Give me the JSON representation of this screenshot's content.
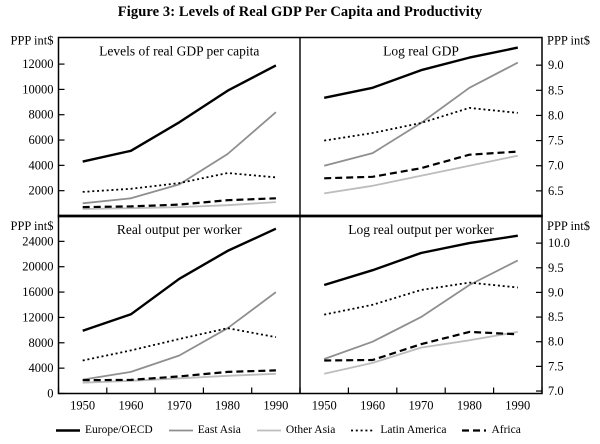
{
  "figure_title": "Figure 3: Levels of Real GDP Per Capita and Productivity",
  "axis_unit_label": "PPP int$",
  "years": [
    "1950",
    "1960",
    "1970",
    "1980",
    "1990"
  ],
  "styles": {
    "europe_oecd": {
      "color": "#000000",
      "width": 2.4,
      "dash": ""
    },
    "east_asia": {
      "color": "#8f8f8f",
      "width": 1.8,
      "dash": ""
    },
    "other_asia": {
      "color": "#bdbdbd",
      "width": 1.8,
      "dash": ""
    },
    "latin_america": {
      "color": "#000000",
      "width": 1.8,
      "dash": "2 2.8"
    },
    "africa": {
      "color": "#000000",
      "width": 2.2,
      "dash": "7 4"
    }
  },
  "legend": {
    "items": [
      {
        "label": "Europe/OECD",
        "style": "europe_oecd"
      },
      {
        "label": "East Asia",
        "style": "east_asia"
      },
      {
        "label": "Other Asia",
        "style": "other_asia"
      },
      {
        "label": "Latin America",
        "style": "latin_america"
      },
      {
        "label": "Africa",
        "style": "africa"
      }
    ]
  },
  "chart_data": [
    {
      "type": "line",
      "position": "top-left",
      "title": "Levels of real GDP per capita",
      "unit_label": "PPP int$",
      "axis_side": "left",
      "x": [
        "1950",
        "1960",
        "1970",
        "1980",
        "1990"
      ],
      "show_x_labels": false,
      "ylim": [
        0,
        14100
      ],
      "yticks": [
        2000,
        4000,
        6000,
        8000,
        10000,
        12000
      ],
      "ytick_labels": [
        "2000",
        "4000",
        "6000",
        "8000",
        "10000",
        "12000"
      ],
      "series": [
        {
          "name": "Other Asia",
          "style": "other_asia",
          "values": [
            550,
            620,
            700,
            850,
            1100
          ]
        },
        {
          "name": "East Asia",
          "style": "east_asia",
          "values": [
            1000,
            1400,
            2500,
            4900,
            8200
          ]
        },
        {
          "name": "Europe/OECD",
          "style": "europe_oecd",
          "values": [
            4300,
            5150,
            7400,
            9900,
            11900
          ]
        },
        {
          "name": "Latin America",
          "style": "latin_america",
          "values": [
            1900,
            2150,
            2600,
            3400,
            3050
          ]
        },
        {
          "name": "Africa",
          "style": "africa",
          "values": [
            700,
            760,
            900,
            1250,
            1400
          ]
        }
      ]
    },
    {
      "type": "line",
      "position": "top-right",
      "title": "Log real GDP",
      "unit_label": "PPP int$",
      "axis_side": "right",
      "x": [
        "1950",
        "1960",
        "1970",
        "1980",
        "1990"
      ],
      "show_x_labels": false,
      "ylim": [
        6.0,
        9.55
      ],
      "yticks": [
        6.5,
        7.0,
        7.5,
        8.0,
        8.5,
        9.0
      ],
      "ytick_labels": [
        "6.5",
        "7.0",
        "7.5",
        "8.0",
        "8.5",
        "9.0"
      ],
      "series": [
        {
          "name": "Other Asia",
          "style": "other_asia",
          "values": [
            6.45,
            6.6,
            6.8,
            7.0,
            7.2
          ]
        },
        {
          "name": "East Asia",
          "style": "east_asia",
          "values": [
            7.0,
            7.25,
            7.85,
            8.55,
            9.05
          ]
        },
        {
          "name": "Europe/OECD",
          "style": "europe_oecd",
          "values": [
            8.35,
            8.55,
            8.9,
            9.15,
            9.35
          ]
        },
        {
          "name": "Latin America",
          "style": "latin_america",
          "values": [
            7.5,
            7.65,
            7.85,
            8.15,
            8.05
          ]
        },
        {
          "name": "Africa",
          "style": "africa",
          "values": [
            6.75,
            6.78,
            6.95,
            7.22,
            7.28
          ]
        }
      ]
    },
    {
      "type": "line",
      "position": "bottom-left",
      "title": "Real output per worker",
      "unit_label": "PPP int$",
      "axis_side": "left",
      "x": [
        "1950",
        "1960",
        "1970",
        "1980",
        "1990"
      ],
      "show_x_labels": true,
      "ylim": [
        0,
        28000
      ],
      "yticks": [
        0,
        4000,
        8000,
        12000,
        16000,
        20000,
        24000
      ],
      "ytick_labels": [
        "0",
        "4000",
        "8000",
        "12000",
        "16000",
        "20000",
        "24000"
      ],
      "series": [
        {
          "name": "Other Asia",
          "style": "other_asia",
          "values": [
            1700,
            2000,
            2400,
            2800,
            3100
          ]
        },
        {
          "name": "East Asia",
          "style": "east_asia",
          "values": [
            2200,
            3400,
            6000,
            10300,
            16000
          ]
        },
        {
          "name": "Europe/OECD",
          "style": "europe_oecd",
          "values": [
            9900,
            12500,
            18100,
            22500,
            26000
          ]
        },
        {
          "name": "Latin America",
          "style": "latin_america",
          "values": [
            5200,
            6800,
            8600,
            10300,
            8900
          ]
        },
        {
          "name": "Africa",
          "style": "africa",
          "values": [
            2100,
            2150,
            2700,
            3400,
            3650
          ]
        }
      ]
    },
    {
      "type": "line",
      "position": "bottom-right",
      "title": "Log real output per worker",
      "unit_label": "PPP int$",
      "axis_side": "right",
      "x": [
        "1950",
        "1960",
        "1970",
        "1980",
        "1990"
      ],
      "show_x_labels": true,
      "ylim": [
        6.95,
        10.55
      ],
      "yticks": [
        7.0,
        7.5,
        8.0,
        8.5,
        9.0,
        9.5,
        10.0
      ],
      "ytick_labels": [
        "7.0",
        "7.5",
        "8.0",
        "8.5",
        "9.0",
        "9.5",
        "10.0"
      ],
      "series": [
        {
          "name": "Other Asia",
          "style": "other_asia",
          "values": [
            7.35,
            7.57,
            7.88,
            8.03,
            8.2
          ]
        },
        {
          "name": "East Asia",
          "style": "east_asia",
          "values": [
            7.65,
            8.0,
            8.5,
            9.15,
            9.65
          ]
        },
        {
          "name": "Europe/OECD",
          "style": "europe_oecd",
          "values": [
            9.15,
            9.45,
            9.8,
            10.0,
            10.15
          ]
        },
        {
          "name": "Latin America",
          "style": "latin_america",
          "values": [
            8.55,
            8.75,
            9.05,
            9.2,
            9.1
          ]
        },
        {
          "name": "Africa",
          "style": "africa",
          "values": [
            7.62,
            7.63,
            7.95,
            8.2,
            8.15
          ]
        }
      ]
    }
  ]
}
